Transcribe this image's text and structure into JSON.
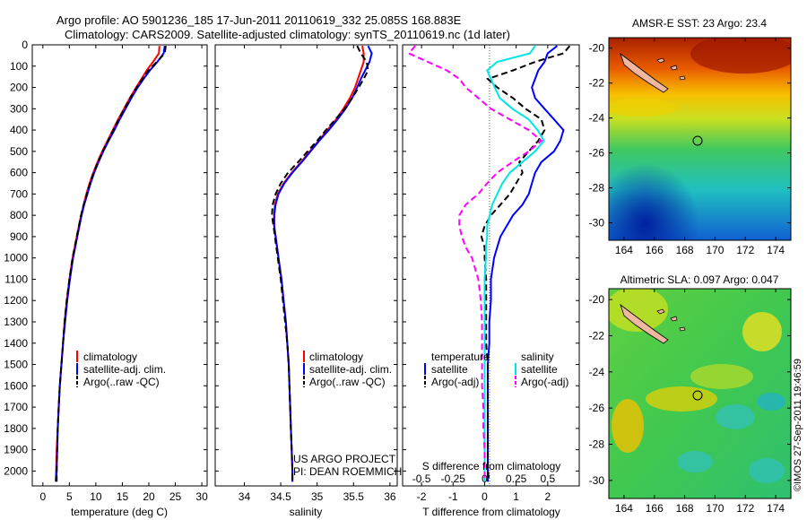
{
  "title_line1": "Argo profile: AO 5901236_185 17-Jun-2011 20110619_332 25.085S 168.883E",
  "title_line2": "Climatology: CARS2009. Satellite-adjusted climatology: synTS_20110619.nc (1d later)",
  "credit": "©IMOS 27-Sep-2011 19:46:59",
  "project_line1": "US ARGO PROJECT",
  "project_line2": "PI: DEAN ROEMMICH",
  "colors": {
    "climatology": "#ff0000",
    "satellite": "#0000ff",
    "argo": "#000000",
    "sal_satellite": "#00e5e5",
    "sal_argo": "#ff00ff"
  },
  "chart_data": [
    {
      "type": "line",
      "xlabel": "temperature (deg C)",
      "xlim": [
        -2,
        31
      ],
      "xticks": [
        0,
        5,
        10,
        15,
        20,
        25,
        30
      ],
      "ylim": [
        0,
        2070
      ],
      "yticks": [
        0,
        100,
        200,
        300,
        400,
        500,
        600,
        700,
        800,
        900,
        1000,
        1100,
        1200,
        1300,
        1400,
        1500,
        1600,
        1700,
        1800,
        1900,
        2000
      ],
      "y": [
        5,
        40,
        80,
        120,
        160,
        200,
        250,
        300,
        350,
        400,
        450,
        500,
        550,
        600,
        650,
        700,
        750,
        800,
        850,
        900,
        950,
        1000,
        1100,
        1200,
        1300,
        1400,
        1500,
        1600,
        1700,
        1800,
        1900,
        2000,
        2050
      ],
      "legend": [
        "climatology",
        "satellite-adj. clim.",
        "Argo(..raw -QC)"
      ],
      "series": [
        {
          "name": "climatology",
          "color": "#ff0000",
          "values": [
            22.0,
            21.9,
            20.8,
            19.6,
            18.6,
            17.6,
            16.4,
            15.3,
            14.2,
            13.2,
            12.2,
            11.2,
            10.3,
            9.5,
            8.8,
            8.2,
            7.7,
            7.2,
            6.8,
            6.4,
            6.0,
            5.6,
            5.0,
            4.5,
            4.1,
            3.8,
            3.5,
            3.2,
            3.0,
            2.8,
            2.6,
            2.5,
            2.4
          ]
        },
        {
          "name": "satellite-adj. clim.",
          "color": "#0000ff",
          "values": [
            23.0,
            22.8,
            21.6,
            20.2,
            19.0,
            17.9,
            16.7,
            15.6,
            14.5,
            13.5,
            12.4,
            11.4,
            10.5,
            9.7,
            9.0,
            8.4,
            7.8,
            7.3,
            6.9,
            6.5,
            6.1,
            5.7,
            5.1,
            4.6,
            4.2,
            3.8,
            3.5,
            3.2,
            3.0,
            2.8,
            2.7,
            2.6,
            2.5
          ]
        },
        {
          "name": "Argo(..raw -QC)",
          "color": "#000000",
          "dashed": true,
          "values": [
            23.2,
            23.0,
            21.5,
            19.9,
            18.8,
            17.7,
            16.5,
            15.4,
            14.3,
            13.3,
            12.3,
            11.3,
            10.4,
            9.6,
            8.9,
            8.3,
            7.7,
            7.2,
            6.8,
            6.4,
            6.0,
            5.6,
            5.0,
            4.5,
            4.1,
            3.8,
            3.5,
            3.2,
            3.0,
            2.8,
            2.7,
            2.6,
            2.6
          ]
        }
      ]
    },
    {
      "type": "line",
      "xlabel": "salinity",
      "xlim": [
        33.6,
        36.1
      ],
      "xticks": [
        34,
        34.5,
        35,
        35.5,
        36
      ],
      "ylim": [
        0,
        2070
      ],
      "y": [
        5,
        40,
        80,
        120,
        160,
        200,
        250,
        300,
        350,
        400,
        450,
        500,
        550,
        600,
        650,
        700,
        750,
        800,
        850,
        900,
        950,
        1000,
        1100,
        1200,
        1300,
        1400,
        1500,
        1600,
        1700,
        1800,
        1900,
        2000,
        2050
      ],
      "legend": [
        "climatology",
        "satellite-adj. clim.",
        "Argo(..raw -QC)"
      ],
      "series": [
        {
          "name": "climatology",
          "color": "#ff0000",
          "values": [
            35.62,
            35.64,
            35.64,
            35.6,
            35.56,
            35.52,
            35.45,
            35.36,
            35.26,
            35.14,
            35.02,
            34.9,
            34.78,
            34.65,
            34.54,
            34.46,
            34.42,
            34.41,
            34.41,
            34.43,
            34.45,
            34.47,
            34.51,
            34.54,
            34.57,
            34.59,
            34.61,
            34.62,
            34.63,
            34.64,
            34.65,
            34.66,
            34.66
          ]
        },
        {
          "name": "satellite-adj. clim.",
          "color": "#0000ff",
          "values": [
            35.7,
            35.75,
            35.72,
            35.66,
            35.6,
            35.55,
            35.48,
            35.39,
            35.28,
            35.16,
            35.03,
            34.91,
            34.79,
            34.66,
            34.55,
            34.47,
            34.43,
            34.41,
            34.41,
            34.43,
            34.45,
            34.47,
            34.51,
            34.54,
            34.57,
            34.59,
            34.61,
            34.62,
            34.63,
            34.64,
            34.65,
            34.66,
            34.66
          ]
        },
        {
          "name": "Argo(..raw -QC)",
          "color": "#000000",
          "dashed": true,
          "values": [
            35.55,
            35.6,
            35.68,
            35.7,
            35.64,
            35.57,
            35.48,
            35.38,
            35.25,
            35.12,
            35.0,
            34.87,
            34.74,
            34.6,
            34.5,
            34.43,
            34.39,
            34.38,
            34.4,
            34.42,
            34.44,
            34.46,
            34.5,
            34.53,
            34.56,
            34.59,
            34.61,
            34.62,
            34.63,
            34.64,
            34.65,
            34.66,
            34.66
          ]
        }
      ]
    },
    {
      "type": "line",
      "xlabel": "T difference from climatology",
      "xlabel_top": "S difference from climatology",
      "xlim": [
        -2.6,
        3.0
      ],
      "xticks": [
        -2,
        -1,
        0,
        1,
        2
      ],
      "xticks_top": [
        "-0.5",
        "-0.25",
        "0",
        "0.25",
        "0.5"
      ],
      "ylim": [
        0,
        2070
      ],
      "y": [
        5,
        40,
        80,
        120,
        160,
        200,
        250,
        300,
        350,
        400,
        450,
        500,
        550,
        600,
        650,
        700,
        750,
        800,
        850,
        900,
        950,
        1000,
        1100,
        1200,
        1300,
        1400,
        1500,
        1600,
        1700,
        1800,
        1900,
        2000,
        2050
      ],
      "legend_temperature_heading": "temperature",
      "legend_salinity_heading": "salinity",
      "legend": [
        "satellite",
        "Argo(-adj)",
        "satellite",
        "Argo(-adj)"
      ],
      "series": [
        {
          "name": "satellite",
          "group": "temperature",
          "color": "#0000ff",
          "values": [
            2.3,
            2.0,
            1.9,
            1.7,
            1.6,
            1.5,
            1.6,
            1.9,
            2.2,
            2.5,
            2.4,
            2.2,
            1.8,
            1.6,
            1.5,
            1.4,
            1.2,
            0.9,
            0.7,
            0.5,
            0.4,
            0.3,
            0.2,
            0.2,
            0.15,
            0.15,
            0.1,
            0.1,
            0.1,
            0.1,
            0.1,
            0.1,
            0.1
          ]
        },
        {
          "name": "Argo(-adj)",
          "group": "temperature",
          "color": "#000000",
          "dashed": true,
          "values": [
            2.7,
            2.5,
            1.6,
            0.9,
            0.1,
            0.4,
            0.9,
            1.3,
            1.8,
            1.9,
            1.7,
            1.4,
            1.1,
            1.2,
            1.0,
            0.8,
            0.5,
            0.2,
            0.0,
            -0.1,
            0.0,
            0.0,
            0.05,
            0.05,
            0.05,
            0.05,
            0.1,
            0.1,
            0.1,
            0.1,
            0.1,
            0.1,
            0.15
          ]
        },
        {
          "name": "satellite",
          "group": "salinity",
          "color": "#00e5e5",
          "values": [
            0.4,
            0.36,
            0.1,
            0.02,
            0.05,
            0.08,
            0.12,
            0.22,
            0.35,
            0.42,
            0.47,
            0.4,
            0.3,
            0.2,
            0.14,
            0.1,
            0.06,
            0.04,
            0.02,
            0.02,
            0.01,
            0.01,
            0.0,
            0.0,
            0.0,
            0.0,
            0.0,
            0.0,
            0.0,
            0.0,
            0.0,
            0.0,
            0.0
          ]
        },
        {
          "name": "Argo(-adj)",
          "group": "salinity",
          "color": "#ff00ff",
          "dashed": true,
          "values": [
            -0.55,
            -0.6,
            -0.45,
            -0.3,
            -0.2,
            -0.15,
            -0.05,
            0.05,
            0.2,
            0.35,
            0.45,
            0.35,
            0.22,
            0.1,
            0.02,
            -0.05,
            -0.15,
            -0.2,
            -0.2,
            -0.18,
            -0.15,
            -0.1,
            -0.05,
            -0.03,
            -0.02,
            -0.02,
            -0.02,
            -0.02,
            -0.01,
            -0.01,
            0.0,
            0.0,
            0.0
          ]
        }
      ]
    },
    {
      "type": "heatmap",
      "title": "AMSR-E SST: 23 Argo: 23.4",
      "xlim": [
        163,
        175
      ],
      "ylim": [
        -31,
        -19.4
      ],
      "xticks": [
        164,
        166,
        168,
        170,
        172,
        174
      ],
      "yticks": [
        -20,
        -22,
        -24,
        -26,
        -28,
        -30
      ],
      "marker": {
        "lon": 168.883,
        "lat": -25.085
      }
    },
    {
      "type": "heatmap",
      "title": "Altimetric SLA: 0.097 Argo: 0.047",
      "xlim": [
        163,
        175
      ],
      "ylim": [
        -31,
        -19.4
      ],
      "xticks": [
        164,
        166,
        168,
        170,
        172,
        174
      ],
      "yticks": [
        -20,
        -22,
        -24,
        -26,
        -28,
        -30
      ],
      "marker": {
        "lon": 168.883,
        "lat": -25.085
      }
    }
  ]
}
